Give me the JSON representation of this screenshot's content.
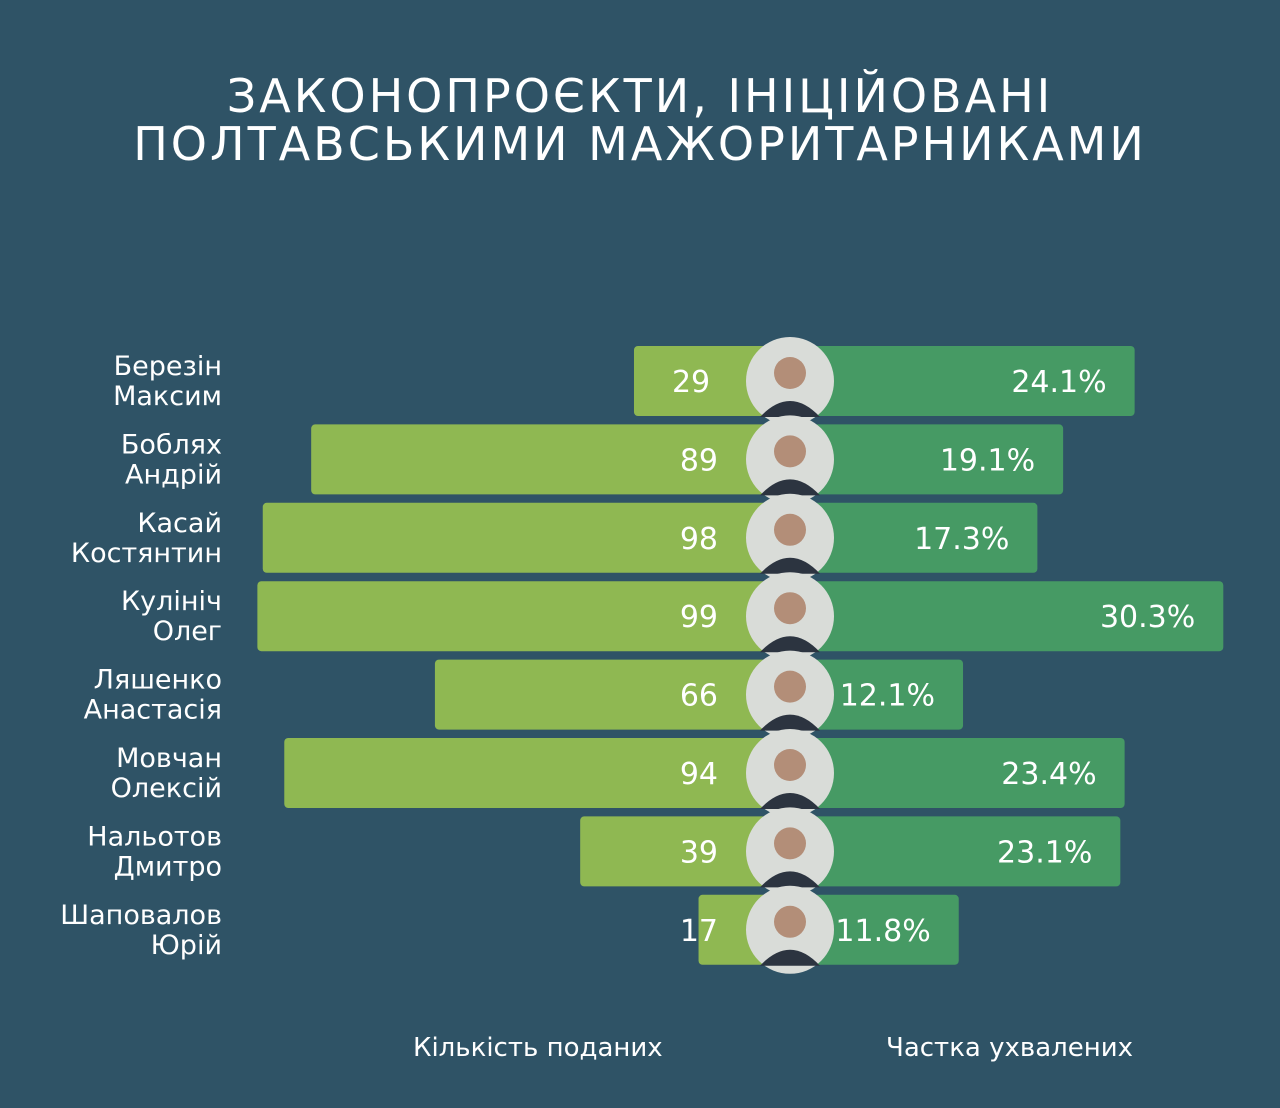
{
  "title": {
    "line1": "ЗАКОНОПРОЄКТИ, ІНІЦІЙОВАНІ",
    "line2": "ПОЛТАВСЬКИМИ МАЖОРИТАРНИКАМИ"
  },
  "legend": {
    "count_label": "Кількість поданих",
    "share_label": "Частка ухвалених"
  },
  "colors": {
    "background": "#2f5366",
    "count_bar": "#8fb852",
    "share_bar": "#469a64",
    "text": "#ffffff"
  },
  "chart_data": {
    "type": "bar",
    "title": "ЗАКОНОПРОЄКТИ, ІНІЦІЙОВАНІ ПОЛТАВСЬКИМИ МАЖОРИТАРНИКАМИ",
    "categories": [
      [
        "Березін",
        "Максим"
      ],
      [
        "Боблях",
        "Андрій"
      ],
      [
        "Касай",
        "Костянтин"
      ],
      [
        "Кулініч",
        "Олег"
      ],
      [
        "Ляшенко",
        "Анастасія"
      ],
      [
        "Мовчан",
        "Олексій"
      ],
      [
        "Нальотов",
        "Дмитро"
      ],
      [
        "Шаповалов",
        "Юрій"
      ]
    ],
    "series": [
      {
        "name": "Кількість поданих",
        "values": [
          29,
          89,
          98,
          99,
          66,
          94,
          39,
          17
        ],
        "labels": [
          "29",
          "89",
          "98",
          "99",
          "66",
          "94",
          "39",
          "17"
        ]
      },
      {
        "name": "Частка ухвалених",
        "values": [
          24.1,
          19.1,
          17.3,
          30.3,
          12.1,
          23.4,
          23.1,
          11.8
        ],
        "labels": [
          "24.1%",
          "19.1%",
          "17.3%",
          "30.3%",
          "12.1%",
          "23.4%",
          "23.1%",
          "11.8%"
        ]
      }
    ],
    "legend": "bottom",
    "grid": false
  }
}
